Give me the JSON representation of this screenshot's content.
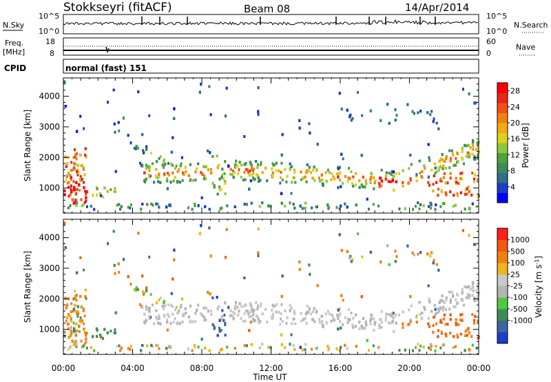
{
  "header": {
    "station": "Stokkseyri (fitACF)",
    "beam": "Beam 08",
    "date": "14/Apr/2014"
  },
  "noise_panel": {
    "left_label": "N.Sky",
    "right_label": "N.Search",
    "left_ticks": [
      "10^5",
      "10^0"
    ],
    "right_ticks": [
      "10^5",
      "10^0"
    ]
  },
  "freq_panel": {
    "left_label_1": "Freq.",
    "left_label_2": "[MHz]",
    "right_label": "Nave",
    "left_ticks": [
      "18",
      "8"
    ],
    "right_ticks": [
      "60",
      "0"
    ],
    "freq_mhz": 9.5,
    "nave": 45
  },
  "cpid": {
    "label": "CPID",
    "value": "normal (fast) 151"
  },
  "chart_data": [
    {
      "type": "heatmap",
      "title": "",
      "xlabel": "Time UT",
      "ylabel": "Slant Range [km]",
      "xlim": [
        "00:00",
        "24:00"
      ],
      "ylim": [
        180,
        4600
      ],
      "x_tick_labels": [
        "00:00",
        "04:00",
        "08:00",
        "12:00",
        "16:00",
        "20:00",
        "00:00"
      ],
      "y_ticks": [
        1000,
        2000,
        3000,
        4000
      ],
      "colorbar": {
        "label": "Power [dB]",
        "ticks": [
          4,
          8,
          12,
          16,
          20,
          24,
          28
        ],
        "range": [
          0,
          30
        ],
        "colors": [
          "#0000ff",
          "#1e3cc8",
          "#2d6e8c",
          "#3c8c5a",
          "#50a03c",
          "#8cc83c",
          "#dcd21e",
          "#f0aa14",
          "#f08214",
          "#f05014",
          "#e62814",
          "#ff0000"
        ]
      }
    },
    {
      "type": "heatmap",
      "title": "",
      "xlabel": "Time UT",
      "ylabel": "Slant Range [km]",
      "xlim": [
        "00:00",
        "24:00"
      ],
      "ylim": [
        180,
        4600
      ],
      "x_tick_labels": [
        "00:00",
        "04:00",
        "08:00",
        "12:00",
        "16:00",
        "20:00",
        "00:00"
      ],
      "y_ticks": [
        1000,
        2000,
        3000,
        4000
      ],
      "colorbar": {
        "label": "Velocity [m s^-1]",
        "ticks": [
          1000,
          500,
          100,
          25,
          -25,
          -100,
          -500,
          -1000
        ],
        "colors": [
          "#1e3cc8",
          "#3c64a0",
          "#3c8c5a",
          "#50c83c",
          "#b4b4b4",
          "#c8c8c8",
          "#f0b41e",
          "#f08214",
          "#f05a14",
          "#ff1e1e"
        ]
      }
    }
  ]
}
